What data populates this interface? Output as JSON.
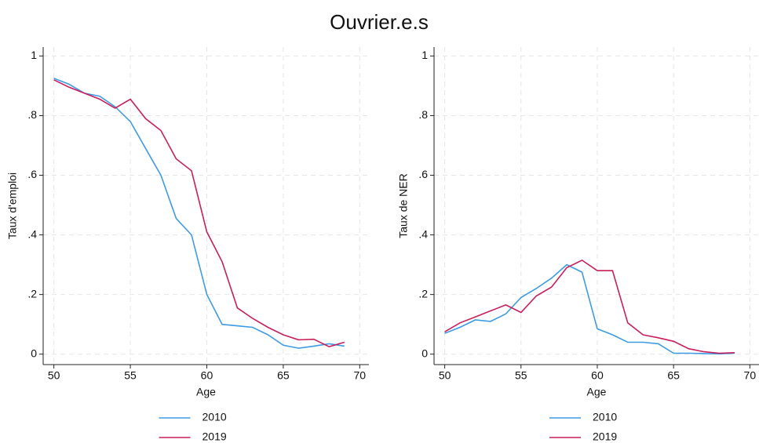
{
  "title": "Ouvrier.e.s",
  "chart_data": [
    {
      "type": "line",
      "xlabel": "Age",
      "ylabel": "Taux d'emploi",
      "x": [
        50,
        51,
        52,
        53,
        54,
        55,
        56,
        57,
        58,
        59,
        60,
        61,
        62,
        63,
        64,
        65,
        66,
        67,
        68,
        69
      ],
      "series": [
        {
          "name": "2010",
          "color": "#3d9be6",
          "values": [
            0.925,
            0.905,
            0.875,
            0.865,
            0.83,
            0.78,
            0.69,
            0.6,
            0.455,
            0.4,
            0.2,
            0.1,
            0.095,
            0.09,
            0.065,
            0.03,
            0.02,
            0.027,
            0.035,
            0.027
          ]
        },
        {
          "name": "2019",
          "color": "#c81f5a",
          "values": [
            0.92,
            0.895,
            0.875,
            0.855,
            0.825,
            0.855,
            0.79,
            0.75,
            0.655,
            0.615,
            0.41,
            0.31,
            0.155,
            0.12,
            0.09,
            0.065,
            0.048,
            0.05,
            0.025,
            0.04
          ]
        }
      ],
      "xlim": [
        49.3,
        70.6
      ],
      "ylim": [
        -0.035,
        1.03
      ],
      "xticks": [
        50,
        55,
        60,
        65,
        70
      ],
      "yticks": [
        0,
        {
          "value": 0.2,
          "label": ".2"
        },
        {
          "value": 0.4,
          "label": ".4"
        },
        {
          "value": 0.6,
          "label": ".6"
        },
        {
          "value": 0.8,
          "label": ".8"
        },
        1
      ],
      "grid": true
    },
    {
      "type": "line",
      "xlabel": "Age",
      "ylabel": "Taux de NER",
      "x": [
        50,
        51,
        52,
        53,
        54,
        55,
        56,
        57,
        58,
        59,
        60,
        61,
        62,
        63,
        64,
        65,
        66,
        67,
        68,
        69
      ],
      "series": [
        {
          "name": "2010",
          "color": "#3d9be6",
          "values": [
            0.07,
            0.09,
            0.115,
            0.11,
            0.135,
            0.19,
            0.22,
            0.255,
            0.3,
            0.275,
            0.085,
            0.065,
            0.04,
            0.04,
            0.035,
            0.003,
            0.003,
            0.002,
            0.001,
            0.003
          ]
        },
        {
          "name": "2019",
          "color": "#c81f5a",
          "values": [
            0.075,
            0.105,
            0.125,
            0.145,
            0.165,
            0.14,
            0.195,
            0.225,
            0.29,
            0.315,
            0.28,
            0.28,
            0.105,
            0.065,
            0.055,
            0.043,
            0.018,
            0.008,
            0.003,
            0.005
          ]
        }
      ],
      "xlim": [
        49.3,
        70.6
      ],
      "ylim": [
        -0.035,
        1.03
      ],
      "xticks": [
        50,
        55,
        60,
        65,
        70
      ],
      "yticks": [
        0,
        {
          "value": 0.2,
          "label": ".2"
        },
        {
          "value": 0.4,
          "label": ".4"
        },
        {
          "value": 0.6,
          "label": ".6"
        },
        {
          "value": 0.8,
          "label": ".8"
        },
        1
      ],
      "grid": true
    }
  ]
}
